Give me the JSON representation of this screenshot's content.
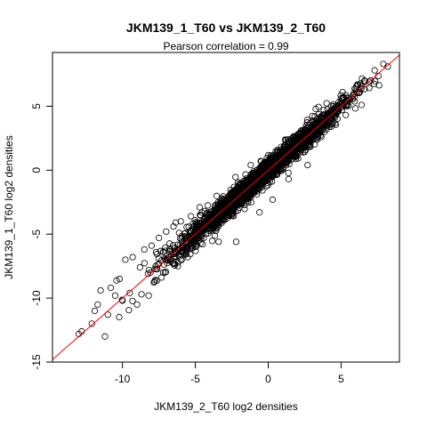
{
  "chart_data": {
    "type": "scatter",
    "title": "JKM139_1_T60 vs JKM139_2_T60",
    "subtitle": "Pearson correlation =  0.99",
    "xlabel": "JKM139_2_T60 log2 densities",
    "ylabel": "JKM139_1_T60 log2 densities",
    "xlim": [
      -14.8,
      9.0
    ],
    "ylim": [
      -15.0,
      9.2
    ],
    "x_ticks": [
      -10,
      -5,
      0,
      5
    ],
    "y_ticks": [
      -15,
      -10,
      -5,
      0,
      5
    ],
    "grid": false,
    "legend": "none",
    "reference_line": {
      "slope": 1,
      "intercept": 0,
      "color": "#ff0000"
    },
    "marker": "open-circle",
    "correlation": 0.99,
    "outliers": [
      {
        "x": -13.0,
        "y": -12.8
      },
      {
        "x": -12.8,
        "y": -12.6
      },
      {
        "x": -12.1,
        "y": -12.0
      },
      {
        "x": -11.9,
        "y": -11.0
      },
      {
        "x": -11.7,
        "y": -10.5
      },
      {
        "x": -11.5,
        "y": -9.4
      },
      {
        "x": -11.2,
        "y": -13.0
      },
      {
        "x": -11.0,
        "y": -11.3
      },
      {
        "x": -10.8,
        "y": -9.2
      },
      {
        "x": -10.5,
        "y": -9.8
      },
      {
        "x": -10.2,
        "y": -8.5
      },
      {
        "x": -10.0,
        "y": -10.2
      },
      {
        "x": -9.8,
        "y": -7.0
      },
      {
        "x": -9.5,
        "y": -9.6
      },
      {
        "x": -9.3,
        "y": -6.8
      },
      {
        "x": -9.0,
        "y": -10.5
      },
      {
        "x": -8.8,
        "y": -7.6
      },
      {
        "x": -8.5,
        "y": -6.2
      },
      {
        "x": -8.2,
        "y": -9.8
      },
      {
        "x": -8.0,
        "y": -5.9
      },
      {
        "x": -7.8,
        "y": -8.7
      },
      {
        "x": -7.5,
        "y": -5.3
      },
      {
        "x": -7.2,
        "y": -8.0
      },
      {
        "x": -7.0,
        "y": -4.8
      },
      {
        "x": -6.8,
        "y": -6.8
      },
      {
        "x": -6.5,
        "y": -4.4
      },
      {
        "x": -6.2,
        "y": -7.5
      },
      {
        "x": -6.0,
        "y": -4.0
      },
      {
        "x": -5.7,
        "y": -6.5
      },
      {
        "x": -5.3,
        "y": -3.6
      },
      {
        "x": -5.0,
        "y": -6.0
      },
      {
        "x": -4.7,
        "y": -2.9
      },
      {
        "x": -4.5,
        "y": -5.8
      },
      {
        "x": -3.4,
        "y": -5.6
      },
      {
        "x": -3.0,
        "y": -3.9
      },
      {
        "x": -2.2,
        "y": -5.6
      },
      {
        "x": -1.6,
        "y": -1.0
      },
      {
        "x": -1.2,
        "y": 0.4
      },
      {
        "x": -0.6,
        "y": -3.3
      },
      {
        "x": 0.3,
        "y": -2.3
      },
      {
        "x": 1.4,
        "y": -0.7
      },
      {
        "x": 1.8,
        "y": 2.5
      },
      {
        "x": 2.7,
        "y": 0.4
      },
      {
        "x": 3.2,
        "y": 4.2
      },
      {
        "x": 4.2,
        "y": 3.4
      },
      {
        "x": 5.1,
        "y": 6.1
      },
      {
        "x": 6.4,
        "y": 5.1
      },
      {
        "x": 7.3,
        "y": 7.8
      },
      {
        "x": 7.9,
        "y": 8.3
      },
      {
        "x": 8.2,
        "y": 8.1
      }
    ],
    "main_cloud": {
      "description_of_shape": "dense band along y = x",
      "x_range": [
        -10.5,
        7.8
      ],
      "spread_sd": 0.45,
      "n_points": 2200,
      "seed": 139
    }
  }
}
